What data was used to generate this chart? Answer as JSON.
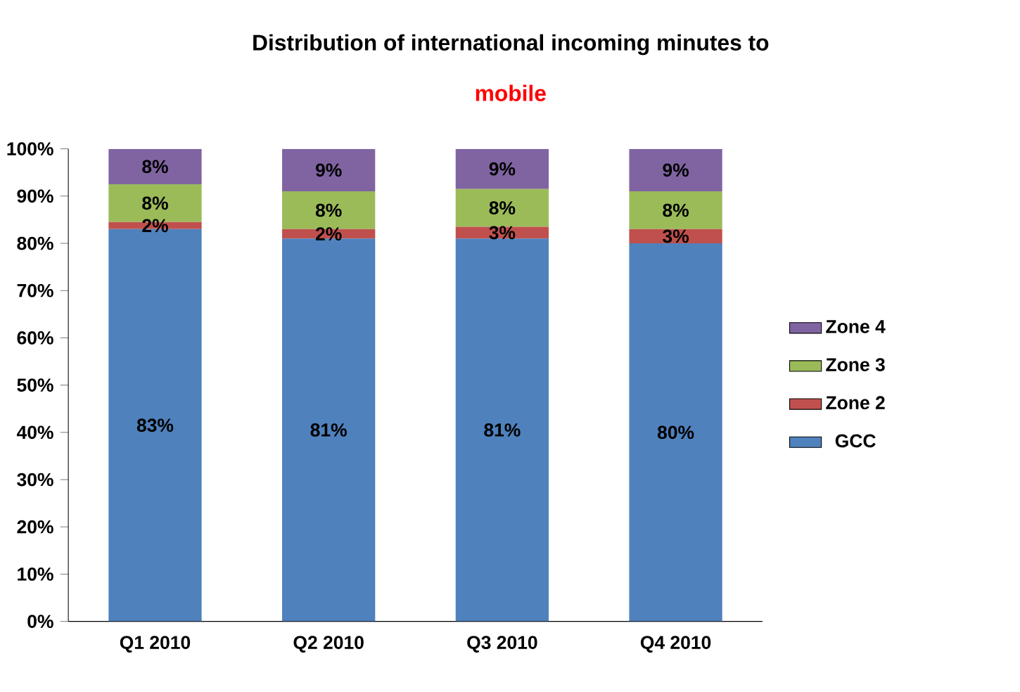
{
  "chart_data": {
    "type": "bar",
    "stacked": true,
    "title": "Distribution of international incoming minutes to",
    "subtitle": "mobile",
    "categories": [
      "Q1 2010",
      "Q2 2010",
      "Q3 2010",
      "Q4 2010"
    ],
    "series": [
      {
        "name": "GCC",
        "color": "#4f81bd",
        "values": [
          83,
          81,
          81,
          80
        ],
        "value_labels": [
          "83%",
          "81%",
          "81%",
          "80%"
        ]
      },
      {
        "name": "Zone 2",
        "color": "#c0504d",
        "values": [
          1.5,
          2,
          2.5,
          3
        ],
        "value_labels": [
          "2%",
          "2%",
          "3%",
          "3%"
        ]
      },
      {
        "name": "Zone 3",
        "color": "#9bbb59",
        "values": [
          8,
          8,
          8,
          8
        ],
        "value_labels": [
          "8%",
          "8%",
          "8%",
          "8%"
        ]
      },
      {
        "name": "Zone 4",
        "color": "#8064a2",
        "values": [
          7.5,
          9,
          8.5,
          9
        ],
        "value_labels": [
          "8%",
          "9%",
          "9%",
          "9%"
        ]
      }
    ],
    "ylim": [
      0,
      100
    ],
    "yticks": [
      {
        "value": 0,
        "label": "0%"
      },
      {
        "value": 10,
        "label": "10%"
      },
      {
        "value": 20,
        "label": "20%"
      },
      {
        "value": 30,
        "label": "30%"
      },
      {
        "value": 40,
        "label": "40%"
      },
      {
        "value": 50,
        "label": "50%"
      },
      {
        "value": 60,
        "label": "60%"
      },
      {
        "value": 70,
        "label": "70%"
      },
      {
        "value": 80,
        "label": "80%"
      },
      {
        "value": 90,
        "label": "90%"
      },
      {
        "value": 100,
        "label": "100%"
      }
    ],
    "grid": false,
    "legend": "right"
  }
}
